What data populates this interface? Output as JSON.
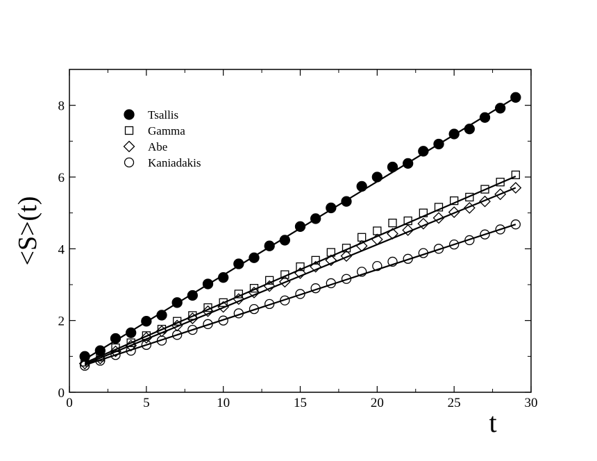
{
  "chart_data": {
    "type": "scatter",
    "xlabel": "t",
    "ylabel": "<S>(t)",
    "xlim": [
      0,
      30
    ],
    "ylim": [
      0,
      9
    ],
    "xticks": [
      0,
      5,
      10,
      15,
      20,
      25,
      30
    ],
    "yticks": [
      0,
      2,
      4,
      6,
      8
    ],
    "grid": false,
    "legend_position": "top-left",
    "x": [
      1,
      2,
      3,
      4,
      5,
      6,
      7,
      8,
      9,
      10,
      11,
      12,
      13,
      14,
      15,
      16,
      17,
      18,
      19,
      20,
      21,
      22,
      23,
      24,
      25,
      26,
      27,
      28,
      29
    ],
    "series": [
      {
        "name": "Tsallis",
        "marker": "filled-circle",
        "values": [
          1.0,
          1.16,
          1.5,
          1.66,
          1.98,
          2.15,
          2.5,
          2.7,
          3.02,
          3.2,
          3.58,
          3.75,
          4.08,
          4.24,
          4.62,
          4.84,
          5.14,
          5.32,
          5.74,
          6.0,
          6.28,
          6.38,
          6.72,
          6.92,
          7.2,
          7.34,
          7.66,
          7.92,
          8.22
        ],
        "fit": [
          0.92,
          8.22
        ]
      },
      {
        "name": "Gamma",
        "marker": "open-square",
        "values": [
          0.84,
          0.98,
          1.24,
          1.38,
          1.58,
          1.76,
          1.98,
          2.14,
          2.36,
          2.5,
          2.74,
          2.9,
          3.12,
          3.28,
          3.5,
          3.68,
          3.9,
          4.02,
          4.32,
          4.5,
          4.72,
          4.78,
          5.0,
          5.16,
          5.34,
          5.44,
          5.66,
          5.86,
          6.06
        ],
        "fit": [
          0.82,
          6.02
        ]
      },
      {
        "name": "Abe",
        "marker": "open-diamond",
        "values": [
          0.8,
          0.94,
          1.14,
          1.3,
          1.52,
          1.7,
          1.86,
          2.06,
          2.26,
          2.38,
          2.6,
          2.78,
          2.96,
          3.08,
          3.32,
          3.5,
          3.68,
          3.8,
          4.08,
          4.26,
          4.42,
          4.52,
          4.7,
          4.86,
          5.02,
          5.14,
          5.32,
          5.52,
          5.7
        ],
        "fit": [
          0.78,
          5.7
        ]
      },
      {
        "name": "Kaniadakis",
        "marker": "open-circle",
        "values": [
          0.74,
          0.88,
          1.04,
          1.16,
          1.32,
          1.44,
          1.6,
          1.74,
          1.9,
          2.0,
          2.2,
          2.32,
          2.46,
          2.56,
          2.74,
          2.9,
          3.04,
          3.16,
          3.36,
          3.52,
          3.64,
          3.72,
          3.88,
          4.0,
          4.12,
          4.24,
          4.4,
          4.54,
          4.68
        ],
        "fit": [
          0.76,
          4.68
        ]
      }
    ]
  }
}
